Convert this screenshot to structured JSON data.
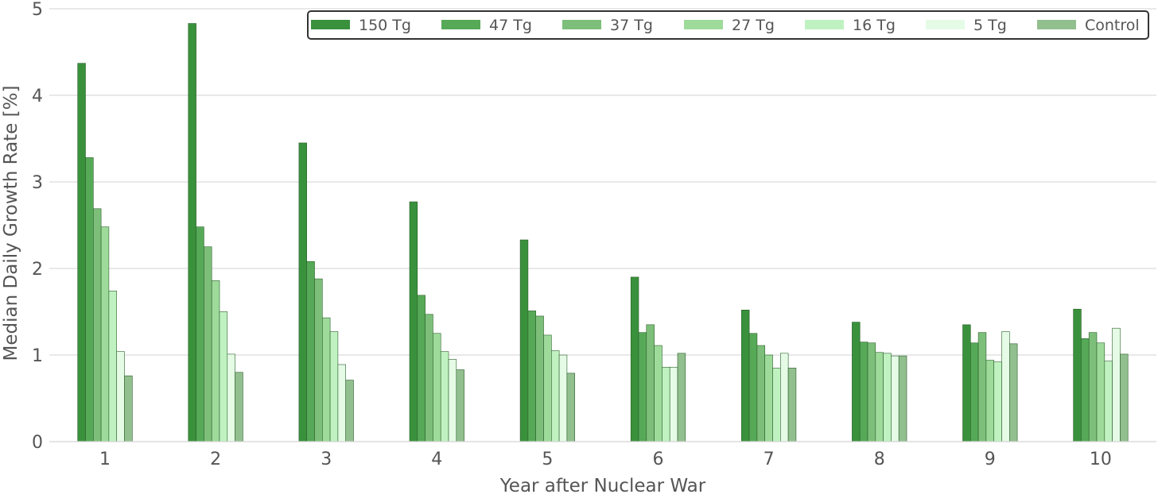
{
  "chart_data": {
    "type": "bar",
    "xlabel": "Year after Nuclear War",
    "ylabel": "Median Daily Growth Rate [%]",
    "ylim": [
      0,
      5
    ],
    "yticks": [
      "0",
      "1",
      "2",
      "3",
      "4",
      "5"
    ],
    "grid": "horizontal",
    "legend_position": "top-right",
    "categories": [
      "1",
      "2",
      "3",
      "4",
      "5",
      "6",
      "7",
      "8",
      "9",
      "10"
    ],
    "series": [
      {
        "name": "150 Tg",
        "color": "#3a913c",
        "values": [
          4.37,
          4.83,
          3.45,
          2.77,
          2.33,
          1.9,
          1.52,
          1.38,
          1.35,
          1.53
        ]
      },
      {
        "name": "47 Tg",
        "color": "#56a957",
        "values": [
          3.28,
          2.48,
          2.08,
          1.69,
          1.51,
          1.26,
          1.25,
          1.15,
          1.14,
          1.19
        ]
      },
      {
        "name": "37 Tg",
        "color": "#7dbf7a",
        "values": [
          2.69,
          2.25,
          1.88,
          1.47,
          1.45,
          1.35,
          1.11,
          1.14,
          1.26,
          1.26
        ]
      },
      {
        "name": "27 Tg",
        "color": "#9edb9b",
        "values": [
          2.48,
          1.86,
          1.43,
          1.25,
          1.23,
          1.11,
          1.0,
          1.03,
          0.94,
          1.14
        ]
      },
      {
        "name": "16 Tg",
        "color": "#c0f2c1",
        "values": [
          1.74,
          1.5,
          1.27,
          1.04,
          1.05,
          0.86,
          0.85,
          1.02,
          0.92,
          0.93
        ]
      },
      {
        "name": "5 Tg",
        "color": "#e5fbe6",
        "values": [
          1.04,
          1.01,
          0.89,
          0.95,
          1.0,
          0.86,
          1.02,
          0.99,
          1.27,
          1.31
        ]
      },
      {
        "name": "Control",
        "color": "#92bf8e",
        "values": [
          0.76,
          0.8,
          0.71,
          0.83,
          0.79,
          1.02,
          0.85,
          0.99,
          1.13,
          1.01
        ]
      }
    ]
  }
}
